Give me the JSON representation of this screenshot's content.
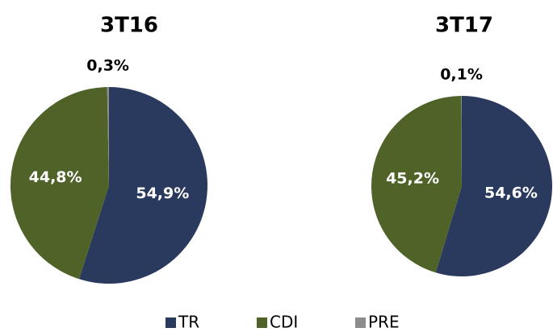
{
  "chart_data": [
    {
      "type": "pie",
      "title": "3T16",
      "categories": [
        "TR",
        "CDI",
        "PRE"
      ],
      "values": [
        54.9,
        44.8,
        0.3
      ],
      "value_labels": [
        "54,9%",
        "44,8%",
        "0,3%"
      ],
      "colors": [
        "#2a3a5e",
        "#4f6228",
        "#8c8c8c"
      ]
    },
    {
      "type": "pie",
      "title": "3T17",
      "categories": [
        "TR",
        "CDI",
        "PRE"
      ],
      "values": [
        54.6,
        45.2,
        0.1
      ],
      "value_labels": [
        "54,6%",
        "45,2%",
        "0,1%"
      ],
      "colors": [
        "#2a3a5e",
        "#4f6228",
        "#8c8c8c"
      ]
    }
  ]
}
